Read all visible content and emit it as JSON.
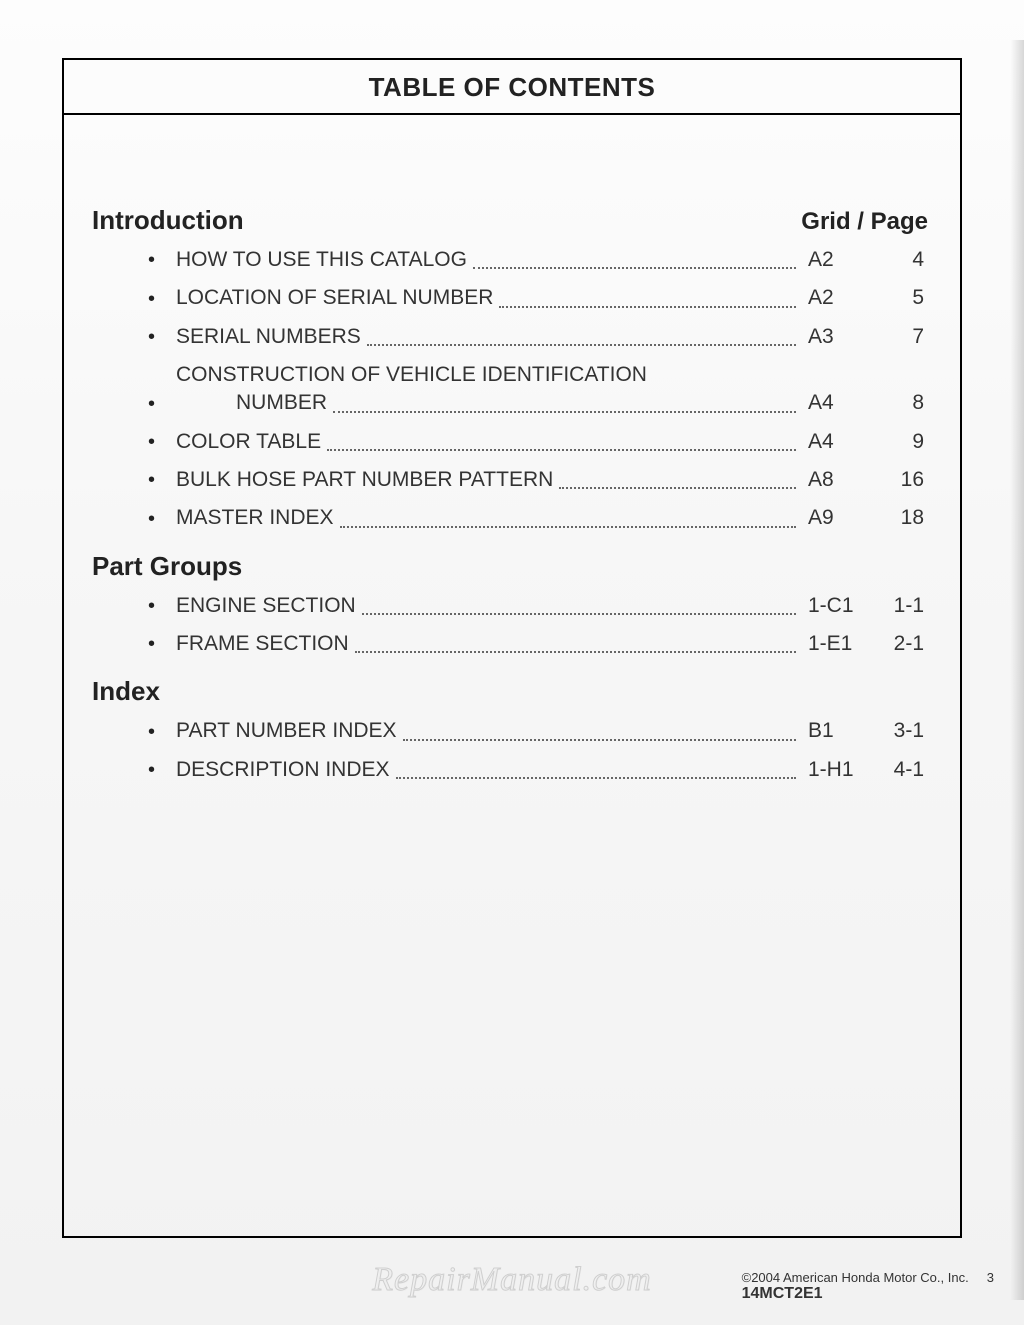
{
  "title": "TABLE OF CONTENTS",
  "column_header": "Grid / Page",
  "sections": [
    {
      "heading": "Introduction",
      "show_header": true,
      "items": [
        {
          "label": "HOW TO USE THIS CATALOG",
          "grid": "A2",
          "page": "4"
        },
        {
          "label": "LOCATION OF SERIAL NUMBER",
          "grid": "A2",
          "page": "5"
        },
        {
          "label": "SERIAL NUMBERS",
          "grid": "A3",
          "page": "7"
        },
        {
          "label": "CONSTRUCTION OF VEHICLE IDENTIFICATION",
          "label2": "NUMBER",
          "grid": "A4",
          "page": "8"
        },
        {
          "label": "COLOR TABLE",
          "grid": "A4",
          "page": "9"
        },
        {
          "label": "BULK HOSE PART NUMBER PATTERN",
          "grid": "A8",
          "page": "16"
        },
        {
          "label": "MASTER INDEX",
          "grid": "A9",
          "page": "18"
        }
      ]
    },
    {
      "heading": "Part Groups",
      "show_header": false,
      "items": [
        {
          "label": "ENGINE SECTION",
          "grid": "1-C1",
          "page": "1-1"
        },
        {
          "label": "FRAME SECTION",
          "grid": "1-E1",
          "page": "2-1"
        }
      ]
    },
    {
      "heading": "Index",
      "show_header": false,
      "items": [
        {
          "label": "PART NUMBER INDEX",
          "grid": "B1",
          "page": "3-1"
        },
        {
          "label": "DESCRIPTION INDEX",
          "grid": "1-H1",
          "page": "4-1"
        }
      ]
    }
  ],
  "footer": {
    "copyright": "©2004  American Honda Motor Co., Inc.",
    "pagenum": "3",
    "doccode": "14MCT2E1"
  },
  "watermark": "RepairManual.com"
}
